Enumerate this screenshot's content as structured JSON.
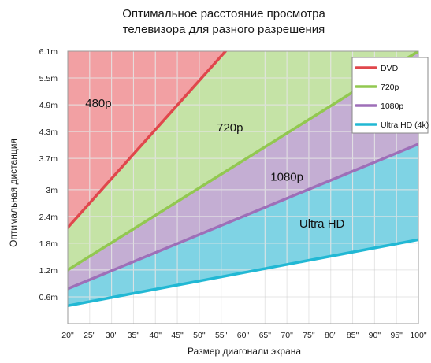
{
  "chart_data": {
    "type": "area",
    "title_lines": [
      "Оптимальное расстояние просмотра",
      "телевизора для разного разрешения"
    ],
    "xlabel": "Размер диагонали экрана",
    "ylabel": "Оптимальная дистанция",
    "xlim": [
      20,
      100
    ],
    "ylim": [
      0,
      6.1
    ],
    "x_ticks": [
      20,
      25,
      30,
      35,
      40,
      45,
      50,
      55,
      60,
      65,
      70,
      75,
      80,
      85,
      90,
      95,
      100
    ],
    "x_tick_labels": [
      "20\"",
      "25\"",
      "30\"",
      "35\"",
      "40\"",
      "45\"",
      "50\"",
      "55\"",
      "60\"",
      "65\"",
      "70\"",
      "75\"",
      "80\"",
      "85\"",
      "90\"",
      "95\"",
      "100\""
    ],
    "y_ticks": [
      0.6,
      1.2,
      1.8,
      2.4,
      3.0,
      3.7,
      4.3,
      4.9,
      5.5,
      6.1
    ],
    "y_tick_labels": [
      "0.6m",
      "1.2m",
      "1.8m",
      "2.4m",
      "3m",
      "3.7m",
      "4.3m",
      "4.9m",
      "5.5m",
      "6.1m"
    ],
    "grid": true,
    "legend_position": "top-right",
    "series": [
      {
        "name": "DVD",
        "color": "#e0474c",
        "fill": "#f2a0a3",
        "x": [
          20,
          56
        ],
        "y": [
          2.15,
          6.1
        ]
      },
      {
        "name": "720p",
        "color": "#92c850",
        "fill": "#c5e3a6",
        "x": [
          20,
          100
        ],
        "y": [
          1.2,
          6.1
        ]
      },
      {
        "name": "1080p",
        "color": "#9e6fb8",
        "fill": "#c4aed3",
        "x": [
          20,
          100
        ],
        "y": [
          0.78,
          4.02
        ]
      },
      {
        "name": "Ultra HD (4k)",
        "color": "#21b8d4",
        "fill": "#7fd3e4",
        "x": [
          20,
          100
        ],
        "y": [
          0.4,
          1.88
        ]
      }
    ],
    "region_labels": [
      {
        "text": "480p",
        "x": 27,
        "y": 4.85
      },
      {
        "text": "720p",
        "x": 57,
        "y": 4.3
      },
      {
        "text": "1080p",
        "x": 70,
        "y": 3.2
      },
      {
        "text": "Ultra HD",
        "x": 78,
        "y": 2.15
      }
    ]
  }
}
